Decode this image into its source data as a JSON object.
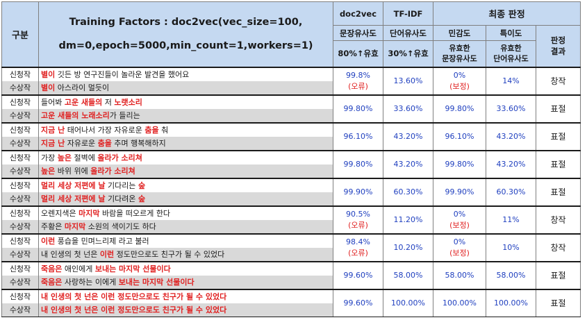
{
  "header": {
    "col_gubun": "구분",
    "tf_line1": "Training Factors : doc2vec(vec_size=100,",
    "tf_line2": "dm=0,epoch=5000,min_count=1,workers=1)",
    "doc2vec": "doc2vec",
    "tfidf": "TF-IDF",
    "final": "최종 판정",
    "sent_sim": "문장유사도",
    "word_sim": "단어유사도",
    "sensitivity": "민감도",
    "specificity": "특이도",
    "judge_l1": "판정",
    "judge_l2": "결과",
    "th_doc": "80%↑유효",
    "th_tf": "30%↑유효",
    "valid_sent_l1": "유효한",
    "valid_sent_l2": "문장유사도",
    "valid_word_l1": "유효한",
    "valid_word_l2": "단어유사도"
  },
  "labels": {
    "new": "신청작",
    "award": "수상작"
  },
  "rows": [
    {
      "new_parts": [
        [
          "별이",
          true
        ],
        [
          " 깃든 방 연구진들이 놀라운 발견을 했어요",
          false
        ]
      ],
      "award_parts": [
        [
          "별이",
          true
        ],
        [
          " 아스라이 멀듯이",
          false
        ]
      ],
      "doc_line1": "99.8%",
      "doc_line2": "(오류)",
      "tfidf": "13.60%",
      "sens_line1": "0%",
      "sens_line2": "(보정)",
      "spec": "14%",
      "result": "창작"
    },
    {
      "new_parts": [
        [
          "들어봐 ",
          false
        ],
        [
          "고운 새들의",
          true
        ],
        [
          " 저 ",
          false
        ],
        [
          "노랫소리",
          true
        ]
      ],
      "award_parts": [
        [
          "고운 새들의 노래소리",
          true
        ],
        [
          "가 들리는",
          false
        ]
      ],
      "doc_line1": "99.80%",
      "doc_line2": "",
      "tfidf": "33.60%",
      "sens_line1": "99.80%",
      "sens_line2": "",
      "spec": "33.60%",
      "result": "표절"
    },
    {
      "new_parts": [
        [
          "지금 난",
          true
        ],
        [
          " 태어나서 가장 자유로운 ",
          false
        ],
        [
          "춤을",
          true
        ],
        [
          " 춰",
          false
        ]
      ],
      "award_parts": [
        [
          "지금 난",
          true
        ],
        [
          " 자유로운 ",
          false
        ],
        [
          "춤을",
          true
        ],
        [
          " 추며 행복해하지",
          false
        ]
      ],
      "doc_line1": "96.10%",
      "doc_line2": "",
      "tfidf": "43.20%",
      "sens_line1": "96.10%",
      "sens_line2": "",
      "spec": "43.20%",
      "result": "표절"
    },
    {
      "new_parts": [
        [
          "가장 ",
          false
        ],
        [
          "높은",
          true
        ],
        [
          " 절벽에 ",
          false
        ],
        [
          "올라가 소리쳐",
          true
        ]
      ],
      "award_parts": [
        [
          "높은",
          true
        ],
        [
          " 바위 위에 ",
          false
        ],
        [
          "올라가 소리쳐",
          true
        ]
      ],
      "doc_line1": "99.80%",
      "doc_line2": "",
      "tfidf": "43.20%",
      "sens_line1": "99.80%",
      "sens_line2": "",
      "spec": "43.20%",
      "result": "표절"
    },
    {
      "new_parts": [
        [
          "멀리 세상 저편에 날",
          true
        ],
        [
          " 기다리는 ",
          false
        ],
        [
          "숲",
          true
        ]
      ],
      "award_parts": [
        [
          "멀리 세상 저편에 날",
          true
        ],
        [
          " 기다려온 ",
          false
        ],
        [
          "숲",
          true
        ]
      ],
      "doc_line1": "99.90%",
      "doc_line2": "",
      "tfidf": "60.30%",
      "sens_line1": "99.90%",
      "sens_line2": "",
      "spec": "60.30%",
      "result": "표절"
    },
    {
      "new_parts": [
        [
          "오렌지색은 ",
          false
        ],
        [
          "마지막",
          true
        ],
        [
          " 바람을 떠오르게 한다",
          false
        ]
      ],
      "award_parts": [
        [
          "주황은 ",
          false
        ],
        [
          "마지막",
          true
        ],
        [
          " 소원의 색이기도 하다",
          false
        ]
      ],
      "doc_line1": "90.5%",
      "doc_line2": "(오류)",
      "tfidf": "11.20%",
      "sens_line1": "0%",
      "sens_line2": "(보정)",
      "spec": "11%",
      "result": "창작"
    },
    {
      "new_parts": [
        [
          "이런",
          true
        ],
        [
          " 풍습을 민며느리제 라고 불러",
          false
        ]
      ],
      "award_parts": [
        [
          "내 인생의 첫 넌은 ",
          false
        ],
        [
          "이런",
          true
        ],
        [
          " 정도만으로도 친구가 될 수 있었다",
          false
        ]
      ],
      "doc_line1": "98.4%",
      "doc_line2": "(오류)",
      "tfidf": "10.20%",
      "sens_line1": "0%",
      "sens_line2": "(보정)",
      "spec": "10%",
      "result": "창작"
    },
    {
      "new_parts": [
        [
          "죽음은",
          true
        ],
        [
          " 애인에게 ",
          false
        ],
        [
          "보내는 마지막 선물이다",
          true
        ]
      ],
      "award_parts": [
        [
          "죽음은",
          true
        ],
        [
          " 사랑하는 이에게 ",
          false
        ],
        [
          "보내는 마지막 선물이다",
          true
        ]
      ],
      "doc_line1": "99.60%",
      "doc_line2": "",
      "tfidf": "58.00%",
      "sens_line1": "58.00%",
      "sens_line2": "",
      "spec": "58.00%",
      "result": "표절"
    },
    {
      "new_parts": [
        [
          "내 인생의 첫 넌은 이런 정도만으로도 친구가 될 수 있었다",
          true
        ]
      ],
      "award_parts": [
        [
          "내 인생의 첫 넌은 이런 정도만으로도 친구가 될 수 있었다",
          true
        ]
      ],
      "doc_line1": "99.60%",
      "doc_line2": "",
      "tfidf": "100.00%",
      "sens_line1": "100.00%",
      "sens_line2": "",
      "spec": "100.00%",
      "result": "표절"
    }
  ]
}
